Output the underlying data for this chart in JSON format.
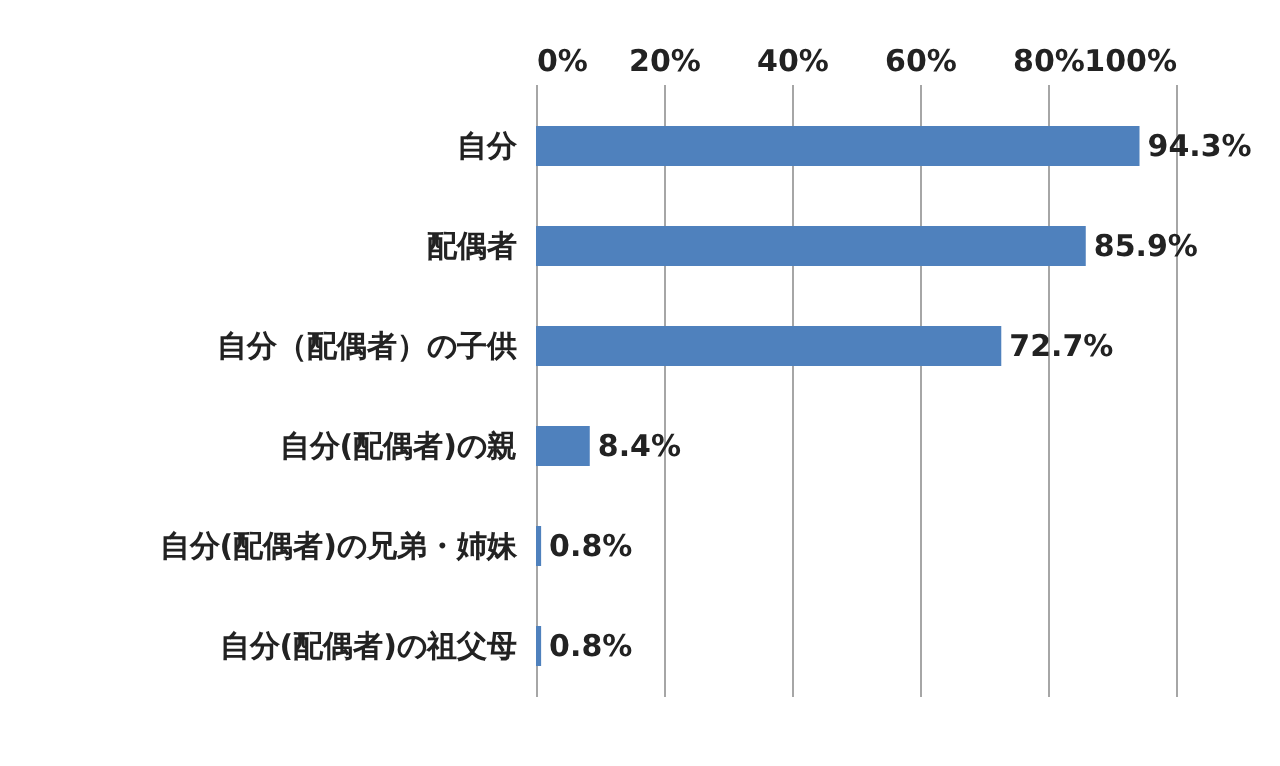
{
  "chart_data": {
    "type": "bar",
    "orientation": "horizontal",
    "categories": [
      "自分",
      "配偶者",
      "自分（配偶者）の子供",
      "自分(配偶者)の親",
      "自分(配偶者)の兄弟・姉妹",
      "自分(配偶者)の祖父母"
    ],
    "values": [
      94.3,
      85.9,
      72.7,
      8.4,
      0.8,
      0.8
    ],
    "value_labels": [
      "94.3%",
      "85.9%",
      "72.7%",
      "8.4%",
      "0.8%",
      "0.8%"
    ],
    "color": "#4f81bd",
    "xlim": [
      0,
      100
    ],
    "xticks": [
      {
        "value": 0,
        "label": "0%"
      },
      {
        "value": 20,
        "label": "20%"
      },
      {
        "value": 40,
        "label": "40%"
      },
      {
        "value": 60,
        "label": "60%"
      },
      {
        "value": 80,
        "label": "80%"
      },
      {
        "value": 100,
        "label": "100%"
      }
    ],
    "grid": "x"
  }
}
